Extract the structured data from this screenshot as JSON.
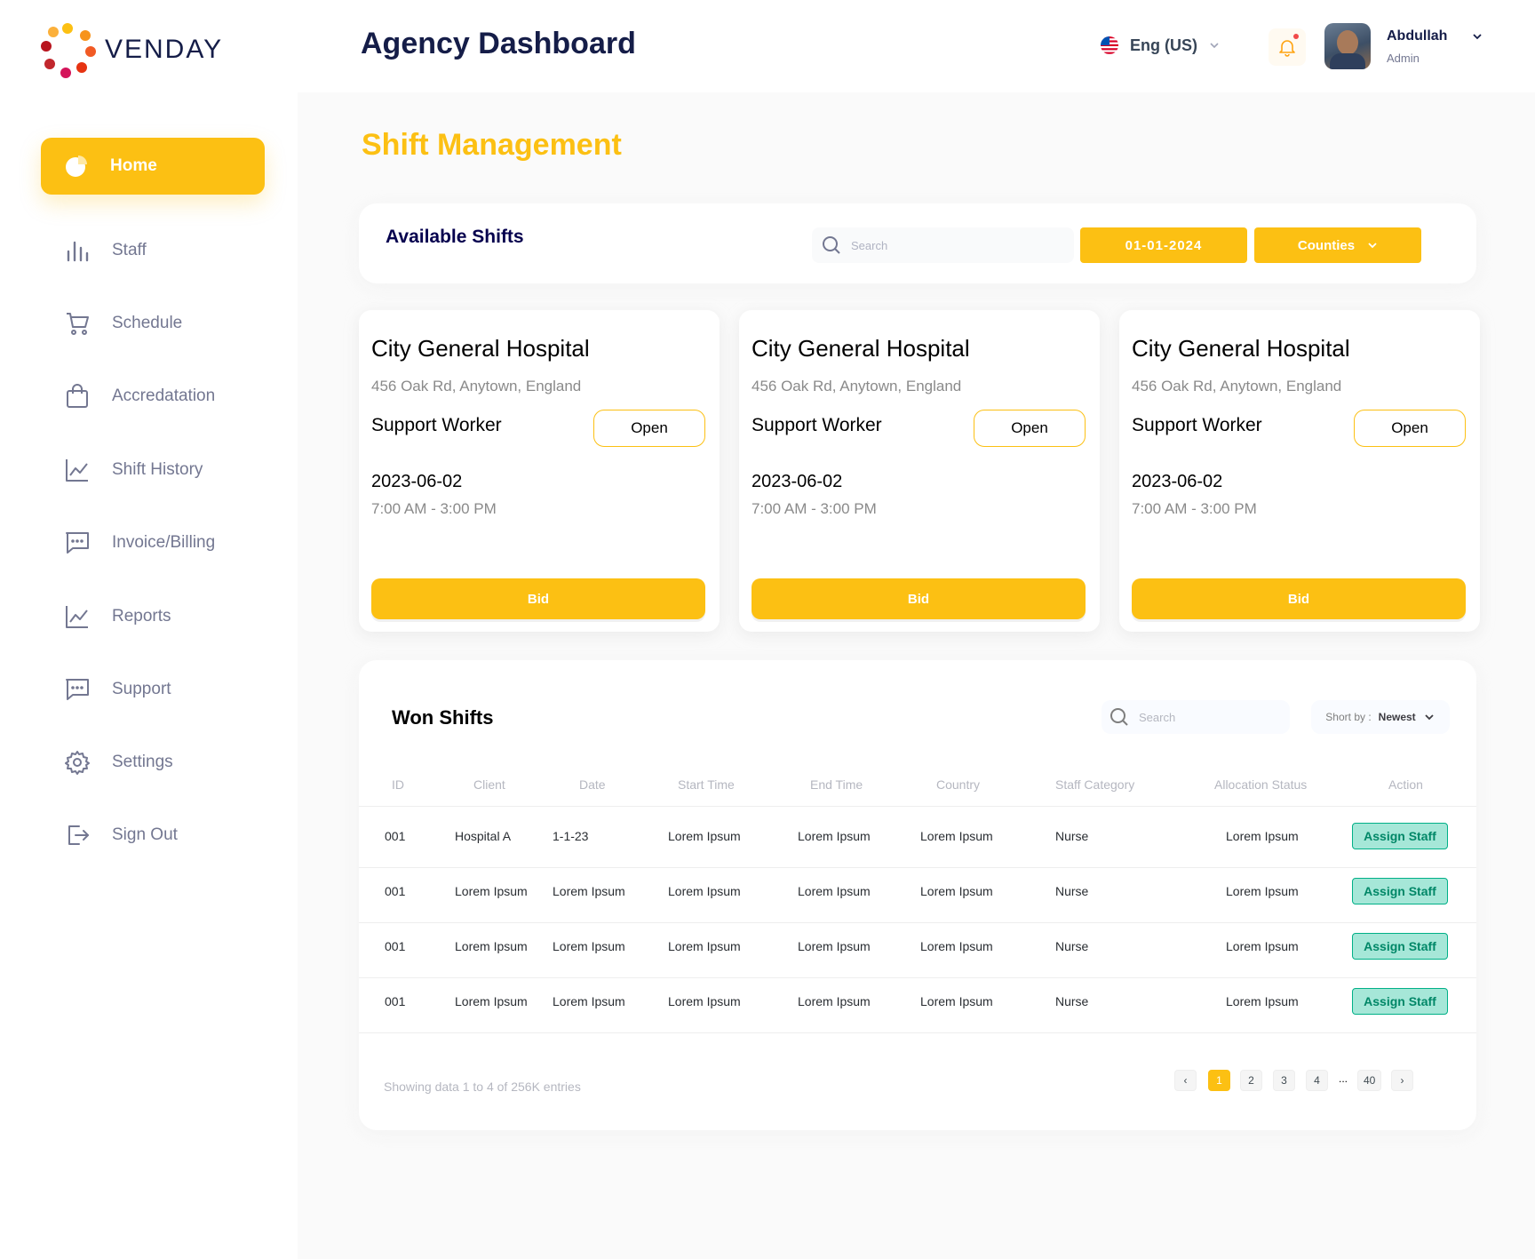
{
  "brand": {
    "name": "VENDAY",
    "accent": "#FCC013"
  },
  "header": {
    "title": "Agency Dashboard",
    "language": "Eng (US)",
    "user_name": "Abdullah",
    "user_role": "Admin"
  },
  "sidebar": {
    "items": [
      {
        "label": "Home",
        "icon": "pie-chart-icon",
        "active": true
      },
      {
        "label": "Staff",
        "icon": "bar-chart-icon"
      },
      {
        "label": "Schedule",
        "icon": "cart-icon"
      },
      {
        "label": "Accredatation",
        "icon": "shopping-bag-icon"
      },
      {
        "label": "Shift History",
        "icon": "line-chart-icon"
      },
      {
        "label": "Invoice/Billing",
        "icon": "message-icon"
      },
      {
        "label": "Reports",
        "icon": "line-chart-icon"
      },
      {
        "label": "Support",
        "icon": "message-icon"
      },
      {
        "label": "Settings",
        "icon": "gear-icon"
      },
      {
        "label": "Sign Out",
        "icon": "sign-out-icon"
      }
    ]
  },
  "main": {
    "section_title": "Shift Management",
    "available": {
      "title": "Available Shifts",
      "search_placeholder": "Search",
      "date_value": "01-01-2024",
      "counties_label": "Counties"
    },
    "cards": [
      {
        "title": "City General Hospital",
        "address": "456 Oak Rd, Anytown, England",
        "role": "Support Worker",
        "status": "Open",
        "date": "2023-06-02",
        "time": "7:00 AM - 3:00 PM",
        "bid_label": "Bid"
      },
      {
        "title": "City General Hospital",
        "address": "456 Oak Rd, Anytown, England",
        "role": "Support Worker",
        "status": "Open",
        "date": "2023-06-02",
        "time": "7:00 AM - 3:00 PM",
        "bid_label": "Bid"
      },
      {
        "title": "City General Hospital",
        "address": "456 Oak Rd, Anytown, England",
        "role": "Support Worker",
        "status": "Open",
        "date": "2023-06-02",
        "time": "7:00 AM - 3:00 PM",
        "bid_label": "Bid"
      }
    ],
    "won": {
      "title": "Won Shifts",
      "search_placeholder": "Search",
      "sort_prefix": "Short by :",
      "sort_value": "Newest",
      "columns": [
        "ID",
        "Client",
        "Date",
        "Start Time",
        "End Time",
        "Country",
        "Staff Category",
        "Allocation Status",
        "Action"
      ],
      "rows": [
        [
          "001",
          "Hospital A",
          "1-1-23",
          "Lorem Ipsum",
          "Lorem Ipsum",
          "Lorem Ipsum",
          "Nurse",
          "Lorem Ipsum",
          "Assign Staff"
        ],
        [
          "001",
          "Lorem Ipsum",
          "Lorem Ipsum",
          "Lorem Ipsum",
          "Lorem Ipsum",
          "Lorem Ipsum",
          "Nurse",
          "Lorem Ipsum",
          "Assign Staff"
        ],
        [
          "001",
          "Lorem Ipsum",
          "Lorem Ipsum",
          "Lorem Ipsum",
          "Lorem Ipsum",
          "Lorem Ipsum",
          "Nurse",
          "Lorem Ipsum",
          "Assign Staff"
        ],
        [
          "001",
          "Lorem Ipsum",
          "Lorem Ipsum",
          "Lorem Ipsum",
          "Lorem Ipsum",
          "Lorem Ipsum",
          "Nurse",
          "Lorem Ipsum",
          "Assign Staff"
        ]
      ],
      "footer_text": "Showing data 1 to 4 of  256K entries",
      "pagination": {
        "prev": "‹",
        "pages": [
          "1",
          "2",
          "3",
          "4"
        ],
        "ellipsis": "...",
        "last": "40",
        "next": "›",
        "current": "1"
      }
    }
  }
}
